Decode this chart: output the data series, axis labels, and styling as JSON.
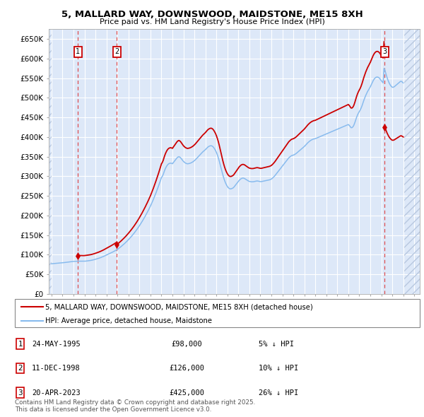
{
  "title": "5, MALLARD WAY, DOWNSWOOD, MAIDSTONE, ME15 8XH",
  "subtitle": "Price paid vs. HM Land Registry's House Price Index (HPI)",
  "ylim": [
    0,
    675000
  ],
  "xlim_start": 1992.75,
  "xlim_end": 2026.5,
  "yticks": [
    0,
    50000,
    100000,
    150000,
    200000,
    250000,
    300000,
    350000,
    400000,
    450000,
    500000,
    550000,
    600000,
    650000
  ],
  "ytick_labels": [
    "£0",
    "£50K",
    "£100K",
    "£150K",
    "£200K",
    "£250K",
    "£300K",
    "£350K",
    "£400K",
    "£450K",
    "£500K",
    "£550K",
    "£600K",
    "£650K"
  ],
  "plot_bg_color": "#dde8f8",
  "hatch_color": "#b8c8e0",
  "grid_color": "#ffffff",
  "sale_color": "#cc0000",
  "hpi_color": "#88bbee",
  "dashed_line_color": "#dd3333",
  "sale_points": [
    {
      "year": 1995.39,
      "price": 98000,
      "label": "1"
    },
    {
      "year": 1998.94,
      "price": 126000,
      "label": "2"
    },
    {
      "year": 2023.31,
      "price": 425000,
      "label": "3"
    }
  ],
  "legend_sale": "5, MALLARD WAY, DOWNSWOOD, MAIDSTONE, ME15 8XH (detached house)",
  "legend_hpi": "HPI: Average price, detached house, Maidstone",
  "table_rows": [
    {
      "num": "1",
      "date": "24-MAY-1995",
      "price": "£98,000",
      "note": "5% ↓ HPI"
    },
    {
      "num": "2",
      "date": "11-DEC-1998",
      "price": "£126,000",
      "note": "10% ↓ HPI"
    },
    {
      "num": "3",
      "date": "20-APR-2023",
      "price": "£425,000",
      "note": "26% ↓ HPI"
    }
  ],
  "footnote": "Contains HM Land Registry data © Crown copyright and database right 2025.\nThis data is licensed under the Open Government Licence v3.0.",
  "hpi_data": [
    [
      1993.0,
      77000
    ],
    [
      1993.083,
      77300
    ],
    [
      1993.167,
      77500
    ],
    [
      1993.25,
      77700
    ],
    [
      1993.333,
      77900
    ],
    [
      1993.417,
      78100
    ],
    [
      1993.5,
      78300
    ],
    [
      1993.583,
      78500
    ],
    [
      1993.667,
      78700
    ],
    [
      1993.75,
      78900
    ],
    [
      1993.833,
      79100
    ],
    [
      1993.917,
      79300
    ],
    [
      1994.0,
      79500
    ],
    [
      1994.083,
      79800
    ],
    [
      1994.167,
      80100
    ],
    [
      1994.25,
      80400
    ],
    [
      1994.333,
      80700
    ],
    [
      1994.417,
      81000
    ],
    [
      1994.5,
      81300
    ],
    [
      1994.583,
      81600
    ],
    [
      1994.667,
      81900
    ],
    [
      1994.75,
      82200
    ],
    [
      1994.833,
      82500
    ],
    [
      1994.917,
      82800
    ],
    [
      1995.0,
      83100
    ],
    [
      1995.083,
      83200
    ],
    [
      1995.167,
      83300
    ],
    [
      1995.25,
      83400
    ],
    [
      1995.333,
      83500
    ],
    [
      1995.417,
      83550
    ],
    [
      1995.5,
      83600
    ],
    [
      1995.583,
      83600
    ],
    [
      1995.667,
      83550
    ],
    [
      1995.75,
      83500
    ],
    [
      1995.833,
      83450
    ],
    [
      1995.917,
      83400
    ],
    [
      1996.0,
      83500
    ],
    [
      1996.083,
      83700
    ],
    [
      1996.167,
      84000
    ],
    [
      1996.25,
      84300
    ],
    [
      1996.333,
      84600
    ],
    [
      1996.417,
      84900
    ],
    [
      1996.5,
      85200
    ],
    [
      1996.583,
      85600
    ],
    [
      1996.667,
      86100
    ],
    [
      1996.75,
      86600
    ],
    [
      1996.833,
      87200
    ],
    [
      1996.917,
      87800
    ],
    [
      1997.0,
      88500
    ],
    [
      1997.083,
      89200
    ],
    [
      1997.167,
      89900
    ],
    [
      1997.25,
      90600
    ],
    [
      1997.333,
      91400
    ],
    [
      1997.417,
      92200
    ],
    [
      1997.5,
      93100
    ],
    [
      1997.583,
      94000
    ],
    [
      1997.667,
      95000
    ],
    [
      1997.75,
      96000
    ],
    [
      1997.833,
      97100
    ],
    [
      1997.917,
      98200
    ],
    [
      1998.0,
      99300
    ],
    [
      1998.083,
      100400
    ],
    [
      1998.167,
      101500
    ],
    [
      1998.25,
      102600
    ],
    [
      1998.333,
      103700
    ],
    [
      1998.417,
      104800
    ],
    [
      1998.5,
      106000
    ],
    [
      1998.583,
      107200
    ],
    [
      1998.667,
      108400
    ],
    [
      1998.75,
      109700
    ],
    [
      1998.833,
      111000
    ],
    [
      1998.917,
      112300
    ],
    [
      1999.0,
      113700
    ],
    [
      1999.083,
      115500
    ],
    [
      1999.167,
      117300
    ],
    [
      1999.25,
      119100
    ],
    [
      1999.333,
      121000
    ],
    [
      1999.417,
      123000
    ],
    [
      1999.5,
      125000
    ],
    [
      1999.583,
      127100
    ],
    [
      1999.667,
      129200
    ],
    [
      1999.75,
      131400
    ],
    [
      1999.833,
      133700
    ],
    [
      1999.917,
      136000
    ],
    [
      2000.0,
      138500
    ],
    [
      2000.083,
      141000
    ],
    [
      2000.167,
      143600
    ],
    [
      2000.25,
      146200
    ],
    [
      2000.333,
      148900
    ],
    [
      2000.417,
      151700
    ],
    [
      2000.5,
      154600
    ],
    [
      2000.583,
      157600
    ],
    [
      2000.667,
      160700
    ],
    [
      2000.75,
      163900
    ],
    [
      2000.833,
      167200
    ],
    [
      2000.917,
      170600
    ],
    [
      2001.0,
      174100
    ],
    [
      2001.083,
      177700
    ],
    [
      2001.167,
      181400
    ],
    [
      2001.25,
      185200
    ],
    [
      2001.333,
      189100
    ],
    [
      2001.417,
      193100
    ],
    [
      2001.5,
      197200
    ],
    [
      2001.583,
      201400
    ],
    [
      2001.667,
      205700
    ],
    [
      2001.75,
      210100
    ],
    [
      2001.833,
      214600
    ],
    [
      2001.917,
      219200
    ],
    [
      2002.0,
      224000
    ],
    [
      2002.083,
      229200
    ],
    [
      2002.167,
      234500
    ],
    [
      2002.25,
      240000
    ],
    [
      2002.333,
      245700
    ],
    [
      2002.417,
      251500
    ],
    [
      2002.5,
      257500
    ],
    [
      2002.583,
      263600
    ],
    [
      2002.667,
      269900
    ],
    [
      2002.75,
      276300
    ],
    [
      2002.833,
      282900
    ],
    [
      2002.917,
      289700
    ],
    [
      2003.0,
      296700
    ],
    [
      2003.083,
      300000
    ],
    [
      2003.167,
      305000
    ],
    [
      2003.25,
      312000
    ],
    [
      2003.333,
      318000
    ],
    [
      2003.417,
      323000
    ],
    [
      2003.5,
      327000
    ],
    [
      2003.583,
      330000
    ],
    [
      2003.667,
      332000
    ],
    [
      2003.75,
      333000
    ],
    [
      2003.833,
      333500
    ],
    [
      2003.917,
      333000
    ],
    [
      2004.0,
      332000
    ],
    [
      2004.083,
      335000
    ],
    [
      2004.167,
      338000
    ],
    [
      2004.25,
      341000
    ],
    [
      2004.333,
      344000
    ],
    [
      2004.417,
      347000
    ],
    [
      2004.5,
      349000
    ],
    [
      2004.583,
      350000
    ],
    [
      2004.667,
      349000
    ],
    [
      2004.75,
      347000
    ],
    [
      2004.833,
      344000
    ],
    [
      2004.917,
      341000
    ],
    [
      2005.0,
      338000
    ],
    [
      2005.083,
      336000
    ],
    [
      2005.167,
      334000
    ],
    [
      2005.25,
      333000
    ],
    [
      2005.333,
      332000
    ],
    [
      2005.417,
      332000
    ],
    [
      2005.5,
      332500
    ],
    [
      2005.583,
      333000
    ],
    [
      2005.667,
      334000
    ],
    [
      2005.75,
      335000
    ],
    [
      2005.833,
      336500
    ],
    [
      2005.917,
      338000
    ],
    [
      2006.0,
      340000
    ],
    [
      2006.083,
      342000
    ],
    [
      2006.167,
      344500
    ],
    [
      2006.25,
      347000
    ],
    [
      2006.333,
      349500
    ],
    [
      2006.417,
      352000
    ],
    [
      2006.5,
      354500
    ],
    [
      2006.583,
      357000
    ],
    [
      2006.667,
      359500
    ],
    [
      2006.75,
      362000
    ],
    [
      2006.833,
      364000
    ],
    [
      2006.917,
      366000
    ],
    [
      2007.0,
      368000
    ],
    [
      2007.083,
      370500
    ],
    [
      2007.167,
      373000
    ],
    [
      2007.25,
      375000
    ],
    [
      2007.333,
      376500
    ],
    [
      2007.417,
      377500
    ],
    [
      2007.5,
      378000
    ],
    [
      2007.583,
      377500
    ],
    [
      2007.667,
      376000
    ],
    [
      2007.75,
      373500
    ],
    [
      2007.833,
      370000
    ],
    [
      2007.917,
      366000
    ],
    [
      2008.0,
      361000
    ],
    [
      2008.083,
      355000
    ],
    [
      2008.167,
      348000
    ],
    [
      2008.25,
      340000
    ],
    [
      2008.333,
      331000
    ],
    [
      2008.417,
      322000
    ],
    [
      2008.5,
      313000
    ],
    [
      2008.583,
      304000
    ],
    [
      2008.667,
      296000
    ],
    [
      2008.75,
      289000
    ],
    [
      2008.833,
      283000
    ],
    [
      2008.917,
      278000
    ],
    [
      2009.0,
      274000
    ],
    [
      2009.083,
      271000
    ],
    [
      2009.167,
      269000
    ],
    [
      2009.25,
      268000
    ],
    [
      2009.333,
      268000
    ],
    [
      2009.417,
      269000
    ],
    [
      2009.5,
      270000
    ],
    [
      2009.583,
      272000
    ],
    [
      2009.667,
      275000
    ],
    [
      2009.75,
      278000
    ],
    [
      2009.833,
      281000
    ],
    [
      2009.917,
      284000
    ],
    [
      2010.0,
      287000
    ],
    [
      2010.083,
      290000
    ],
    [
      2010.167,
      292000
    ],
    [
      2010.25,
      294000
    ],
    [
      2010.333,
      295000
    ],
    [
      2010.417,
      295500
    ],
    [
      2010.5,
      295000
    ],
    [
      2010.583,
      294000
    ],
    [
      2010.667,
      292500
    ],
    [
      2010.75,
      291000
    ],
    [
      2010.833,
      289500
    ],
    [
      2010.917,
      288000
    ],
    [
      2011.0,
      287000
    ],
    [
      2011.083,
      286500
    ],
    [
      2011.167,
      286000
    ],
    [
      2011.25,
      286000
    ],
    [
      2011.333,
      286000
    ],
    [
      2011.417,
      286500
    ],
    [
      2011.5,
      287000
    ],
    [
      2011.583,
      287500
    ],
    [
      2011.667,
      288000
    ],
    [
      2011.75,
      288000
    ],
    [
      2011.833,
      287500
    ],
    [
      2011.917,
      287000
    ],
    [
      2012.0,
      286500
    ],
    [
      2012.083,
      286500
    ],
    [
      2012.167,
      287000
    ],
    [
      2012.25,
      287500
    ],
    [
      2012.333,
      288000
    ],
    [
      2012.417,
      288500
    ],
    [
      2012.5,
      289000
    ],
    [
      2012.583,
      289500
    ],
    [
      2012.667,
      290000
    ],
    [
      2012.75,
      290500
    ],
    [
      2012.833,
      291000
    ],
    [
      2012.917,
      292000
    ],
    [
      2013.0,
      293000
    ],
    [
      2013.083,
      295000
    ],
    [
      2013.167,
      297000
    ],
    [
      2013.25,
      299500
    ],
    [
      2013.333,
      302000
    ],
    [
      2013.417,
      305000
    ],
    [
      2013.5,
      308000
    ],
    [
      2013.583,
      311000
    ],
    [
      2013.667,
      314000
    ],
    [
      2013.75,
      317000
    ],
    [
      2013.833,
      320000
    ],
    [
      2013.917,
      323000
    ],
    [
      2014.0,
      326000
    ],
    [
      2014.083,
      329000
    ],
    [
      2014.167,
      332000
    ],
    [
      2014.25,
      335000
    ],
    [
      2014.333,
      338000
    ],
    [
      2014.417,
      341000
    ],
    [
      2014.5,
      344000
    ],
    [
      2014.583,
      347000
    ],
    [
      2014.667,
      349000
    ],
    [
      2014.75,
      351000
    ],
    [
      2014.833,
      352500
    ],
    [
      2014.917,
      353500
    ],
    [
      2015.0,
      354000
    ],
    [
      2015.083,
      355000
    ],
    [
      2015.167,
      356500
    ],
    [
      2015.25,
      358000
    ],
    [
      2015.333,
      360000
    ],
    [
      2015.417,
      362000
    ],
    [
      2015.5,
      364000
    ],
    [
      2015.583,
      366000
    ],
    [
      2015.667,
      368000
    ],
    [
      2015.75,
      370000
    ],
    [
      2015.833,
      372000
    ],
    [
      2015.917,
      374000
    ],
    [
      2016.0,
      376000
    ],
    [
      2016.083,
      378500
    ],
    [
      2016.167,
      381000
    ],
    [
      2016.25,
      383500
    ],
    [
      2016.333,
      386000
    ],
    [
      2016.417,
      388000
    ],
    [
      2016.5,
      390000
    ],
    [
      2016.583,
      391500
    ],
    [
      2016.667,
      393000
    ],
    [
      2016.75,
      394000
    ],
    [
      2016.833,
      395000
    ],
    [
      2016.917,
      395500
    ],
    [
      2017.0,
      396000
    ],
    [
      2017.083,
      397000
    ],
    [
      2017.167,
      398000
    ],
    [
      2017.25,
      399000
    ],
    [
      2017.333,
      400000
    ],
    [
      2017.417,
      401000
    ],
    [
      2017.5,
      402000
    ],
    [
      2017.583,
      403000
    ],
    [
      2017.667,
      404000
    ],
    [
      2017.75,
      405000
    ],
    [
      2017.833,
      406000
    ],
    [
      2017.917,
      407000
    ],
    [
      2018.0,
      408000
    ],
    [
      2018.083,
      409000
    ],
    [
      2018.167,
      410000
    ],
    [
      2018.25,
      411000
    ],
    [
      2018.333,
      412000
    ],
    [
      2018.417,
      413000
    ],
    [
      2018.5,
      414000
    ],
    [
      2018.583,
      415000
    ],
    [
      2018.667,
      416000
    ],
    [
      2018.75,
      417000
    ],
    [
      2018.833,
      418000
    ],
    [
      2018.917,
      419000
    ],
    [
      2019.0,
      420000
    ],
    [
      2019.083,
      421000
    ],
    [
      2019.167,
      422000
    ],
    [
      2019.25,
      423000
    ],
    [
      2019.333,
      424000
    ],
    [
      2019.417,
      425000
    ],
    [
      2019.5,
      426000
    ],
    [
      2019.583,
      427000
    ],
    [
      2019.667,
      428000
    ],
    [
      2019.75,
      429000
    ],
    [
      2019.833,
      430000
    ],
    [
      2019.917,
      431000
    ],
    [
      2020.0,
      432000
    ],
    [
      2020.083,
      430000
    ],
    [
      2020.167,
      427000
    ],
    [
      2020.25,
      424000
    ],
    [
      2020.333,
      424000
    ],
    [
      2020.417,
      426000
    ],
    [
      2020.5,
      430000
    ],
    [
      2020.583,
      436000
    ],
    [
      2020.667,
      443000
    ],
    [
      2020.75,
      450000
    ],
    [
      2020.833,
      456000
    ],
    [
      2020.917,
      461000
    ],
    [
      2021.0,
      465000
    ],
    [
      2021.083,
      469000
    ],
    [
      2021.167,
      474000
    ],
    [
      2021.25,
      480000
    ],
    [
      2021.333,
      487000
    ],
    [
      2021.417,
      494000
    ],
    [
      2021.5,
      500000
    ],
    [
      2021.583,
      506000
    ],
    [
      2021.667,
      511000
    ],
    [
      2021.75,
      516000
    ],
    [
      2021.833,
      520000
    ],
    [
      2021.917,
      524000
    ],
    [
      2022.0,
      528000
    ],
    [
      2022.083,
      533000
    ],
    [
      2022.167,
      538000
    ],
    [
      2022.25,
      543000
    ],
    [
      2022.333,
      547000
    ],
    [
      2022.417,
      550000
    ],
    [
      2022.5,
      552000
    ],
    [
      2022.583,
      553000
    ],
    [
      2022.667,
      553000
    ],
    [
      2022.75,
      552000
    ],
    [
      2022.833,
      550000
    ],
    [
      2022.917,
      547000
    ],
    [
      2023.0,
      544000
    ],
    [
      2023.083,
      541000
    ],
    [
      2023.167,
      538000
    ],
    [
      2023.25,
      575000
    ],
    [
      2023.333,
      570000
    ],
    [
      2023.417,
      562000
    ],
    [
      2023.5,
      554000
    ],
    [
      2023.583,
      547000
    ],
    [
      2023.667,
      541000
    ],
    [
      2023.75,
      536000
    ],
    [
      2023.833,
      532000
    ],
    [
      2023.917,
      529000
    ],
    [
      2024.0,
      527000
    ],
    [
      2024.083,
      527000
    ],
    [
      2024.167,
      528000
    ],
    [
      2024.25,
      530000
    ],
    [
      2024.333,
      532000
    ],
    [
      2024.417,
      534000
    ],
    [
      2024.5,
      536000
    ],
    [
      2024.583,
      538000
    ],
    [
      2024.667,
      540000
    ],
    [
      2024.75,
      542000
    ],
    [
      2024.833,
      542000
    ],
    [
      2024.917,
      540000
    ],
    [
      2025.0,
      538000
    ]
  ]
}
